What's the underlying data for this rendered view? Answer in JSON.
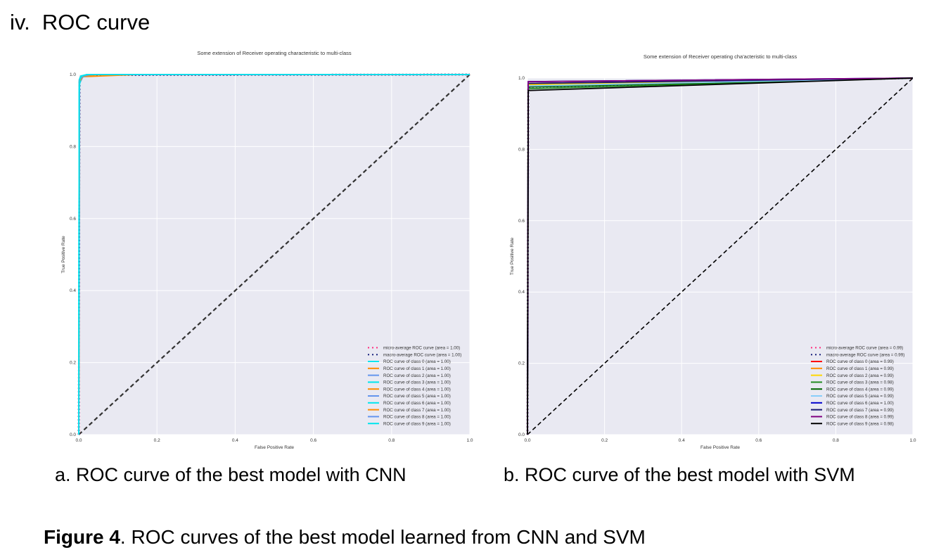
{
  "section_heading": "iv.  ROC curve",
  "subcaptions": {
    "a": "a. ROC curve of the best model with CNN",
    "b": "b. ROC curve of the best model with SVM"
  },
  "figure_caption": {
    "label": "Figure 4",
    "text": ". ROC curves of the best model learned from CNN and SVM"
  },
  "chart_data": [
    {
      "type": "line",
      "title": "Some extension of Receiver operating characteristic to multi-class",
      "xlabel": "False Positive Rate",
      "ylabel": "True Positive Rate",
      "xlim": [
        0.0,
        1.0
      ],
      "ylim": [
        0.0,
        1.0
      ],
      "xticks": [
        "0.0",
        "0.2",
        "0.4",
        "0.6",
        "0.8",
        "1.0"
      ],
      "yticks": [
        "0.0",
        "0.2",
        "0.4",
        "0.6",
        "0.8",
        "1.0"
      ],
      "grid": true,
      "background": "#e9e9f2",
      "legend_position": "lower right",
      "series": [
        {
          "name": "micro-average ROC curve (area = 1.00)",
          "color": "#ff2f7f",
          "style": "dotted",
          "x": [
            0,
            0.002,
            0.01,
            0.03,
            1.0
          ],
          "y": [
            0,
            0.985,
            0.995,
            0.999,
            1.0
          ]
        },
        {
          "name": "macro-average ROC curve (area = 1.00)",
          "color": "#1a237e",
          "style": "dotted",
          "x": [
            0,
            0.002,
            0.01,
            0.03,
            1.0
          ],
          "y": [
            0,
            0.98,
            0.994,
            0.999,
            1.0
          ]
        },
        {
          "name": "ROC curve of class 0 (area = 1.00)",
          "color": "#00e5ee",
          "style": "solid",
          "x": [
            0,
            0.001,
            0.005,
            0.02,
            1.0
          ],
          "y": [
            0,
            0.985,
            0.996,
            1.0,
            1.0
          ]
        },
        {
          "name": "ROC curve of class 1 (area = 1.00)",
          "color": "#ff8c00",
          "style": "solid",
          "x": [
            0,
            0.002,
            0.01,
            0.15,
            1.0
          ],
          "y": [
            0,
            0.98,
            0.994,
            1.0,
            1.0
          ]
        },
        {
          "name": "ROC curve of class 2 (area = 1.00)",
          "color": "#6495ed",
          "style": "solid",
          "x": [
            0,
            0.002,
            0.01,
            0.03,
            1.0
          ],
          "y": [
            0,
            0.975,
            0.993,
            1.0,
            1.0
          ]
        },
        {
          "name": "ROC curve of class 3 (area = 1.00)",
          "color": "#00e5ee",
          "style": "solid",
          "x": [
            0,
            0.001,
            0.006,
            0.03,
            1.0
          ],
          "y": [
            0,
            0.98,
            0.995,
            1.0,
            1.0
          ]
        },
        {
          "name": "ROC curve of class 4 (area = 1.00)",
          "color": "#ff8c00",
          "style": "solid",
          "x": [
            0,
            0.002,
            0.01,
            0.05,
            1.0
          ],
          "y": [
            0,
            0.985,
            0.996,
            1.0,
            1.0
          ]
        },
        {
          "name": "ROC curve of class 5 (area = 1.00)",
          "color": "#6495ed",
          "style": "solid",
          "x": [
            0,
            0.002,
            0.01,
            0.04,
            1.0
          ],
          "y": [
            0,
            0.98,
            0.994,
            1.0,
            1.0
          ]
        },
        {
          "name": "ROC curve of class 6 (area = 1.00)",
          "color": "#00e5ee",
          "style": "solid",
          "x": [
            0,
            0.002,
            0.008,
            0.03,
            1.0
          ],
          "y": [
            0,
            0.975,
            0.993,
            1.0,
            1.0
          ]
        },
        {
          "name": "ROC curve of class 7 (area = 1.00)",
          "color": "#ff8c00",
          "style": "solid",
          "x": [
            0,
            0.002,
            0.01,
            0.04,
            1.0
          ],
          "y": [
            0,
            0.98,
            0.995,
            1.0,
            1.0
          ]
        },
        {
          "name": "ROC curve of class 8 (area = 1.00)",
          "color": "#6495ed",
          "style": "solid",
          "x": [
            0,
            0.002,
            0.01,
            0.03,
            1.0
          ],
          "y": [
            0,
            0.985,
            0.996,
            1.0,
            1.0
          ]
        },
        {
          "name": "ROC curve of class 9 (area = 1.00)",
          "color": "#00e5ee",
          "style": "solid",
          "x": [
            0,
            0.001,
            0.003,
            0.006,
            0.02,
            1.0
          ],
          "y": [
            0,
            0.95,
            0.985,
            0.995,
            1.0,
            1.0
          ]
        }
      ]
    },
    {
      "type": "line",
      "title": "Some extension of Receiver operating cha'acteristic to multi-class",
      "xlabel": "False Positive Rate",
      "ylabel": "True Positive Rate",
      "xlim": [
        0.0,
        1.0
      ],
      "ylim": [
        0.0,
        1.0
      ],
      "xticks": [
        "0.0",
        "0.2",
        "0.4",
        "0.6",
        "0.8",
        "1.0"
      ],
      "yticks": [
        "0.0",
        "0.2",
        "0.4",
        "0.6",
        "0.8",
        "1.0"
      ],
      "grid": true,
      "background": "#e9e9f2",
      "legend_position": "lower right",
      "series": [
        {
          "name": "micro-average ROC curve (area = 0.99)",
          "color": "#ff2f7f",
          "style": "dotted",
          "x": [
            0,
            0.002,
            1.0
          ],
          "y": [
            0,
            0.98,
            1.0
          ]
        },
        {
          "name": "macro-average ROC curve (area = 0.99)",
          "color": "#1a237e",
          "style": "dotted",
          "x": [
            0,
            0.002,
            1.0
          ],
          "y": [
            0,
            0.975,
            1.0
          ]
        },
        {
          "name": "ROC curve of class 0 (area = 0.99)",
          "color": "#ff0000",
          "style": "solid",
          "x": [
            0,
            0.002,
            1.0
          ],
          "y": [
            0,
            0.985,
            1.0
          ]
        },
        {
          "name": "ROC curve of class 1 (area = 0.99)",
          "color": "#ff8c00",
          "style": "solid",
          "x": [
            0,
            0.002,
            1.0
          ],
          "y": [
            0,
            0.98,
            1.0
          ]
        },
        {
          "name": "ROC curve of class 2 (area = 0.99)",
          "color": "#ffd700",
          "style": "solid",
          "x": [
            0,
            0.002,
            1.0
          ],
          "y": [
            0,
            0.982,
            1.0
          ]
        },
        {
          "name": "ROC curve of class 3 (area = 0.98)",
          "color": "#228b22",
          "style": "solid",
          "x": [
            0,
            0.002,
            1.0
          ],
          "y": [
            0,
            0.97,
            1.0
          ]
        },
        {
          "name": "ROC curve of class 4 (area = 0.99)",
          "color": "#006400",
          "style": "solid",
          "x": [
            0,
            0.002,
            1.0
          ],
          "y": [
            0,
            0.975,
            1.0
          ]
        },
        {
          "name": "ROC curve of class 5 (area = 0.99)",
          "color": "#87cefa",
          "style": "solid",
          "x": [
            0,
            0.002,
            1.0
          ],
          "y": [
            0,
            0.978,
            1.0
          ]
        },
        {
          "name": "ROC curve of class 6 (area = 1.00)",
          "color": "#0000cd",
          "style": "solid",
          "x": [
            0,
            0.002,
            1.0
          ],
          "y": [
            0,
            0.99,
            1.0
          ]
        },
        {
          "name": "ROC curve of class 7 (area = 0.99)",
          "color": "#191970",
          "style": "solid",
          "x": [
            0,
            0.002,
            1.0
          ],
          "y": [
            0,
            0.985,
            1.0
          ]
        },
        {
          "name": "ROC curve of class 8 (area = 0.99)",
          "color": "#800080",
          "style": "solid",
          "x": [
            0,
            0.002,
            1.0
          ],
          "y": [
            0,
            0.99,
            1.0
          ]
        },
        {
          "name": "ROC curve of class 9 (area = 0.98)",
          "color": "#000000",
          "style": "solid",
          "x": [
            0,
            0.002,
            1.0
          ],
          "y": [
            0,
            0.965,
            1.0
          ]
        }
      ]
    }
  ]
}
